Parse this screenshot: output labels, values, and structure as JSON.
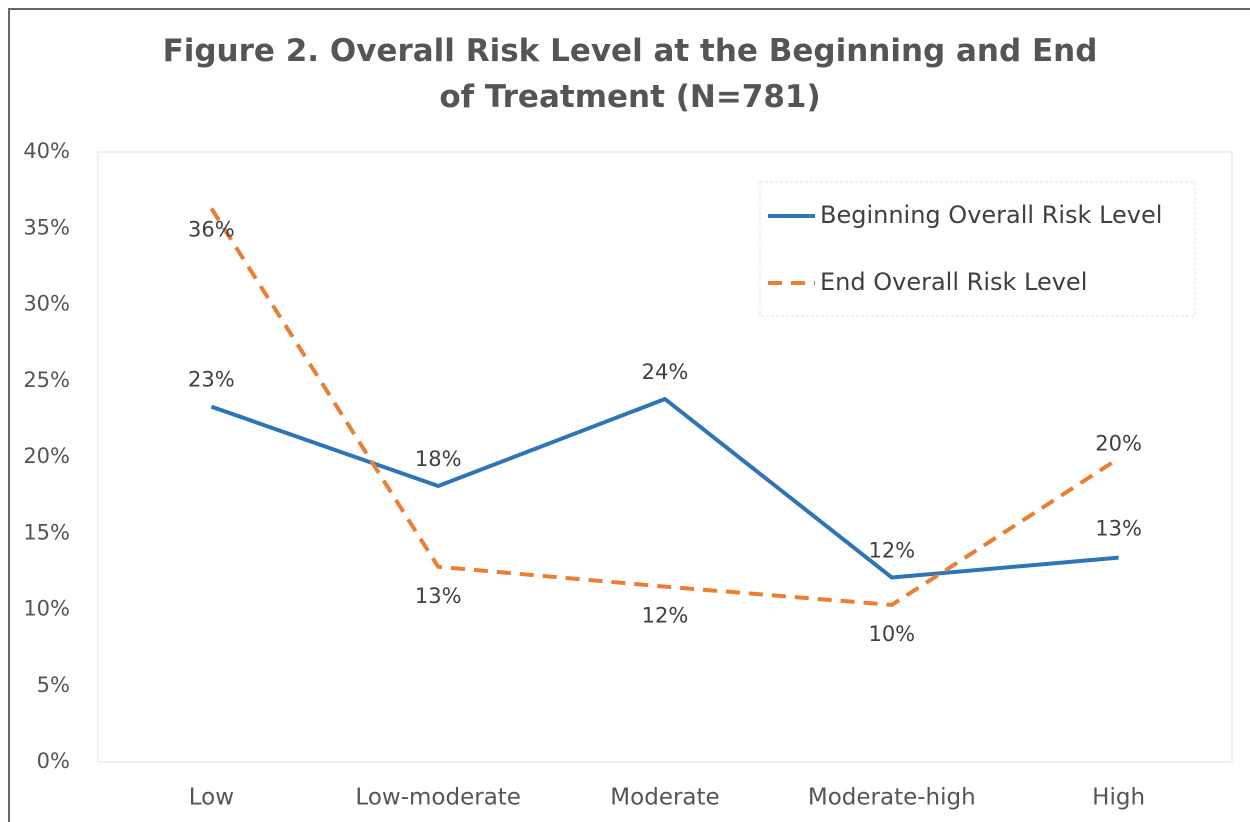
{
  "chart_data": {
    "type": "line",
    "title": "Figure 2. Overall Risk Level at the Beginning and End of Treatment (N=781)",
    "categories": [
      "Low",
      "Low-moderate",
      "Moderate",
      "Moderate-high",
      "High"
    ],
    "series": [
      {
        "name": "Beginning Overall Risk Level",
        "color": "#2e75b6",
        "dashed": false,
        "values": [
          23.3,
          18.1,
          23.8,
          12.1,
          13.4
        ],
        "value_labels": [
          "23%",
          "18%",
          "24%",
          "12%",
          "13%"
        ]
      },
      {
        "name": "End Overall Risk Level",
        "color": "#ed7d31",
        "dashed": true,
        "values": [
          36.3,
          12.8,
          11.5,
          10.3,
          19.9
        ],
        "value_labels": [
          "36%",
          "13%",
          "12%",
          "10%",
          "20%"
        ]
      }
    ],
    "ylim": [
      0,
      40
    ],
    "yticks": [
      {
        "value": 0,
        "label": "0%"
      },
      {
        "value": 5,
        "label": "5%"
      },
      {
        "value": 10,
        "label": "10%"
      },
      {
        "value": 15,
        "label": "15%"
      },
      {
        "value": 20,
        "label": "20%"
      },
      {
        "value": 25,
        "label": "25%"
      },
      {
        "value": 30,
        "label": "30%"
      },
      {
        "value": 35,
        "label": "35%"
      },
      {
        "value": 40,
        "label": "40%"
      }
    ],
    "grid": false,
    "legend": "top-right"
  }
}
